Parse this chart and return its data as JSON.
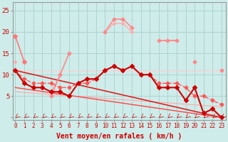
{
  "background_color": "#ceecea",
  "grid_color": "#aed4d0",
  "xlabel": "Vent moyen/en rafales ( km/h )",
  "xlabel_color": "#cc0000",
  "xlabel_fontsize": 7,
  "tick_color": "#cc0000",
  "yticks": [
    0,
    5,
    10,
    15,
    20,
    25
  ],
  "ylim": [
    -0.5,
    27
  ],
  "xlim": [
    -0.3,
    23.5
  ],
  "xticks": [
    0,
    1,
    2,
    3,
    4,
    5,
    6,
    7,
    8,
    9,
    10,
    11,
    12,
    13,
    14,
    15,
    16,
    17,
    18,
    19,
    20,
    21,
    22,
    23
  ],
  "lines": [
    {
      "x": [
        0,
        1,
        2,
        3,
        4,
        5,
        6,
        7,
        8,
        9,
        10,
        11,
        12,
        13,
        14,
        15,
        16,
        17,
        18,
        19,
        20,
        21,
        22,
        23
      ],
      "y": [
        19,
        null,
        null,
        null,
        null,
        null,
        null,
        null,
        null,
        null,
        null,
        null,
        null,
        null,
        null,
        null,
        null,
        null,
        null,
        null,
        null,
        null,
        null,
        null
      ],
      "color": "#ffaaaa",
      "lw": 1.0,
      "marker": null,
      "ms": 3,
      "dashed": false,
      "zorder": 2
    },
    {
      "x": [
        0,
        1,
        2,
        3,
        4,
        5,
        6,
        7,
        8,
        9,
        10,
        11,
        12,
        13,
        14,
        15,
        16,
        17,
        18,
        19,
        20,
        21,
        22,
        23
      ],
      "y": [
        13,
        null,
        null,
        null,
        6,
        10,
        null,
        null,
        null,
        null,
        20,
        22,
        22,
        20,
        null,
        null,
        18,
        18,
        18,
        null,
        13,
        null,
        null,
        11
      ],
      "color": "#ffaaaa",
      "lw": 1.0,
      "marker": "D",
      "ms": 2,
      "dashed": false,
      "zorder": 3
    },
    {
      "x": [
        0,
        1,
        2,
        3,
        4,
        5,
        6,
        7,
        8,
        9,
        10,
        11,
        12,
        13,
        14,
        15,
        16,
        17,
        18,
        19,
        20,
        21,
        22,
        23
      ],
      "y": [
        null,
        null,
        null,
        null,
        5,
        10,
        15,
        null,
        null,
        null,
        20,
        23,
        23,
        21,
        null,
        null,
        18,
        18,
        18,
        null,
        13,
        null,
        null,
        11
      ],
      "color": "#ff8888",
      "lw": 1.2,
      "marker": "D",
      "ms": 2.5,
      "dashed": false,
      "zorder": 4
    },
    {
      "x": [
        0,
        1,
        2,
        3,
        4,
        5,
        6,
        7,
        8,
        9,
        10,
        11,
        12,
        13,
        14,
        15,
        16,
        17,
        18,
        19,
        20,
        21,
        22,
        23
      ],
      "y": [
        11,
        11,
        11,
        11,
        11,
        11,
        11,
        11,
        11,
        11,
        11,
        11,
        11,
        11,
        11,
        11,
        11,
        11,
        11,
        11,
        11,
        11,
        11,
        11
      ],
      "color": "#ffcccc",
      "lw": 0.8,
      "marker": null,
      "ms": 0,
      "dashed": false,
      "zorder": 2
    },
    {
      "x": [
        0,
        1,
        2,
        3,
        4,
        5,
        6,
        7,
        8,
        9,
        10,
        11,
        12,
        13,
        14,
        15,
        16,
        17,
        18,
        19,
        20,
        21,
        22,
        23
      ],
      "y": [
        11,
        9,
        8,
        8,
        8,
        7,
        7,
        8,
        8,
        9,
        11,
        12,
        11,
        12,
        10,
        10,
        8,
        8,
        8,
        7,
        5,
        5,
        4,
        3
      ],
      "color": "#ff5555",
      "lw": 1.0,
      "marker": "D",
      "ms": 2.5,
      "dashed": true,
      "zorder": 4
    },
    {
      "x": [
        0,
        1,
        2,
        3,
        4,
        5,
        6,
        7,
        8,
        9,
        10,
        11,
        12,
        13,
        14,
        15,
        16,
        17,
        18,
        19,
        20,
        21,
        22,
        23
      ],
      "y": [
        11,
        8,
        7,
        7,
        6,
        6,
        5,
        8,
        9,
        9,
        11,
        12,
        11,
        12,
        10,
        10,
        7,
        7,
        7,
        4,
        7,
        1,
        2,
        0
      ],
      "color": "#cc0000",
      "lw": 1.5,
      "marker": "D",
      "ms": 3,
      "dashed": false,
      "zorder": 6
    },
    {
      "x": [
        0,
        23
      ],
      "y": [
        11,
        0
      ],
      "color": "#dd2222",
      "lw": 1.2,
      "marker": null,
      "ms": 0,
      "dashed": false,
      "zorder": 3
    },
    {
      "x": [
        0,
        23
      ],
      "y": [
        7,
        0
      ],
      "color": "#ff4444",
      "lw": 1.0,
      "marker": null,
      "ms": 0,
      "dashed": false,
      "zorder": 3
    },
    {
      "x": [
        0,
        23
      ],
      "y": [
        6,
        2.5
      ],
      "color": "#ffaaaa",
      "lw": 0.8,
      "marker": null,
      "ms": 0,
      "dashed": false,
      "zorder": 2
    },
    {
      "x": [
        0,
        1
      ],
      "y": [
        19,
        13
      ],
      "color": "#ff7777",
      "lw": 1.2,
      "marker": "D",
      "ms": 3,
      "dashed": false,
      "zorder": 4
    }
  ]
}
